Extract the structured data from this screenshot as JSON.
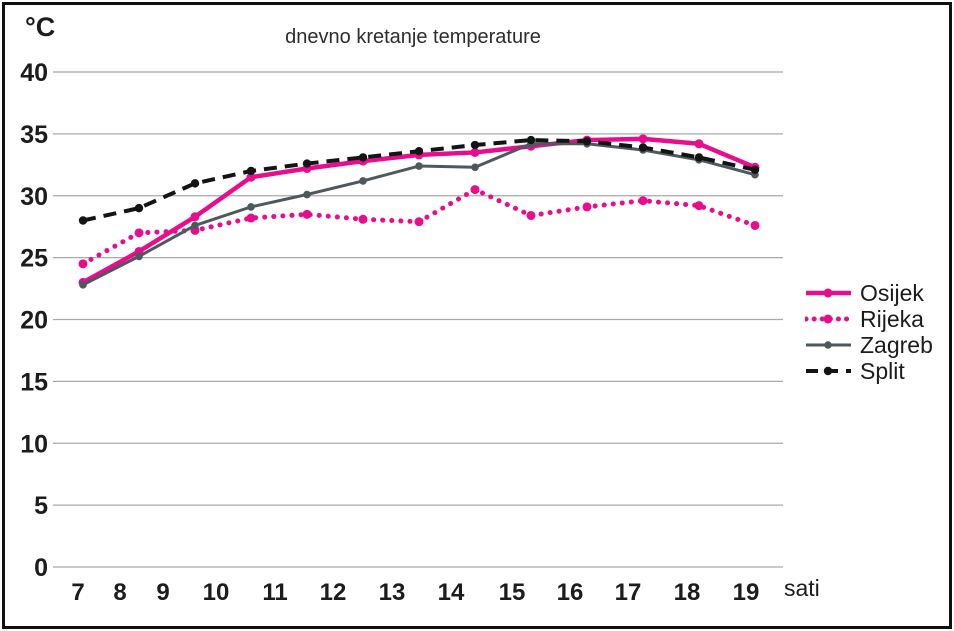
{
  "chart_data": {
    "type": "line",
    "title": "dnevno kretanje temperature",
    "ylabel": "°C",
    "xlabel": "sati",
    "categories": [
      "7",
      "8",
      "9",
      "10",
      "11",
      "12",
      "13",
      "14",
      "15",
      "16",
      "17",
      "18",
      "19"
    ],
    "yticks": [
      0,
      5,
      10,
      15,
      20,
      25,
      30,
      35,
      40
    ],
    "ylim": [
      0,
      40
    ],
    "grid": "horizontal",
    "legend_position": "right",
    "gridline_color": "#a9a9a9",
    "text_color": "#1c1c1c",
    "series": [
      {
        "name": "Osijek",
        "color": "#e80d8c",
        "style": "solid-thick",
        "values": [
          23.0,
          25.5,
          28.3,
          31.5,
          32.2,
          32.8,
          33.3,
          33.5,
          34.0,
          34.5,
          34.6,
          34.2,
          32.3
        ]
      },
      {
        "name": "Rijeka",
        "color": "#e80d8c",
        "style": "dotted",
        "values": [
          24.5,
          27.0,
          27.2,
          28.2,
          28.5,
          28.1,
          27.9,
          30.5,
          28.4,
          29.1,
          29.6,
          29.2,
          27.6
        ]
      },
      {
        "name": "Zagreb",
        "color": "#4d595c",
        "style": "solid-thin",
        "values": [
          22.8,
          25.1,
          27.6,
          29.1,
          30.1,
          31.2,
          32.4,
          32.3,
          34.2,
          34.2,
          33.7,
          32.9,
          31.7
        ]
      },
      {
        "name": "Split",
        "color": "#141414",
        "style": "dashed",
        "values": [
          28.0,
          29.0,
          31.0,
          32.0,
          32.6,
          33.1,
          33.6,
          34.1,
          34.5,
          34.4,
          33.9,
          33.1,
          32.1
        ]
      }
    ]
  }
}
